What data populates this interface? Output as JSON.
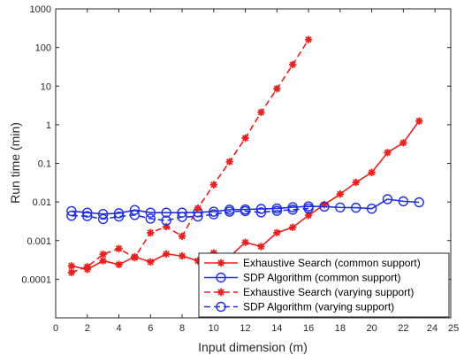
{
  "chart_data": {
    "type": "line",
    "xlabel": "Input dimension (m)",
    "ylabel": "Run time (min)",
    "xlim": [
      0,
      25
    ],
    "ylim": [
      1e-05,
      1000
    ],
    "yscale": "log",
    "grid": false,
    "legend_position": "bottom-right",
    "x_ticks": [
      0,
      2,
      4,
      6,
      8,
      10,
      12,
      14,
      16,
      18,
      20,
      22,
      24,
      25
    ],
    "x_tick_labels": [
      "0",
      "2",
      "4",
      "6",
      "8",
      "10",
      "12",
      "14",
      "16",
      "18",
      "20",
      "22",
      "24",
      "25"
    ],
    "y_ticks": [
      0.0001,
      0.001,
      0.01,
      0.1,
      1,
      10,
      100,
      1000
    ],
    "y_tick_labels": [
      "0.0001",
      "0.001",
      "0.01",
      "0.1",
      "1",
      "10",
      "100",
      "1000"
    ],
    "series": [
      {
        "name": "Exhaustive Search (common support)",
        "color": "#e8201f",
        "marker": "asterisk",
        "dash": "solid",
        "x": [
          1,
          2,
          3,
          4,
          5,
          6,
          7,
          8,
          9,
          10,
          11,
          12,
          13,
          14,
          15,
          16,
          17,
          18,
          19,
          20,
          21,
          22,
          23
        ],
        "y": [
          0.00022,
          0.00018,
          0.0003,
          0.00024,
          0.00038,
          0.00028,
          0.00045,
          0.0004,
          0.0003,
          0.00048,
          0.00038,
          0.0009,
          0.0007,
          0.0016,
          0.0022,
          0.0045,
          0.0085,
          0.016,
          0.032,
          0.058,
          0.19,
          0.34,
          1.25
        ]
      },
      {
        "name": "SDP Algorithm (common support)",
        "color": "#1f2fe0",
        "marker": "circle",
        "dash": "solid",
        "x": [
          1,
          2,
          3,
          4,
          5,
          6,
          7,
          8,
          9,
          10,
          11,
          12,
          13,
          14,
          15,
          16,
          17,
          18,
          19,
          20,
          21,
          22,
          23
        ],
        "y": [
          0.0058,
          0.0053,
          0.0049,
          0.0051,
          0.0062,
          0.0053,
          0.0053,
          0.0053,
          0.0054,
          0.0056,
          0.0063,
          0.0064,
          0.0066,
          0.0068,
          0.0073,
          0.0077,
          0.0076,
          0.0072,
          0.0071,
          0.0067,
          0.0118,
          0.0104,
          0.0098
        ]
      },
      {
        "name": "Exhaustive Search (varying support)",
        "color": "#e8201f",
        "marker": "asterisk",
        "dash": "dashed",
        "x": [
          1,
          2,
          3,
          4,
          5,
          6,
          7,
          8,
          9,
          10,
          11,
          12,
          13,
          14,
          15,
          16
        ],
        "y": [
          0.00015,
          0.00021,
          0.00044,
          0.00062,
          0.00036,
          0.0016,
          0.0023,
          0.0013,
          0.0069,
          0.028,
          0.11,
          0.45,
          2.1,
          8.5,
          36,
          160
        ]
      },
      {
        "name": "SDP Algorithm (varying support)",
        "color": "#1f2fe0",
        "marker": "circle",
        "dash": "dashed",
        "x": [
          1,
          2,
          3,
          4,
          5,
          6,
          7,
          8,
          9,
          10,
          11,
          12,
          13,
          14,
          15,
          16
        ],
        "y": [
          0.0044,
          0.0043,
          0.0036,
          0.0042,
          0.0046,
          0.0037,
          0.0033,
          0.0041,
          0.0042,
          0.0048,
          0.0056,
          0.0058,
          0.0054,
          0.0059,
          0.0063,
          0.0068
        ]
      }
    ]
  }
}
